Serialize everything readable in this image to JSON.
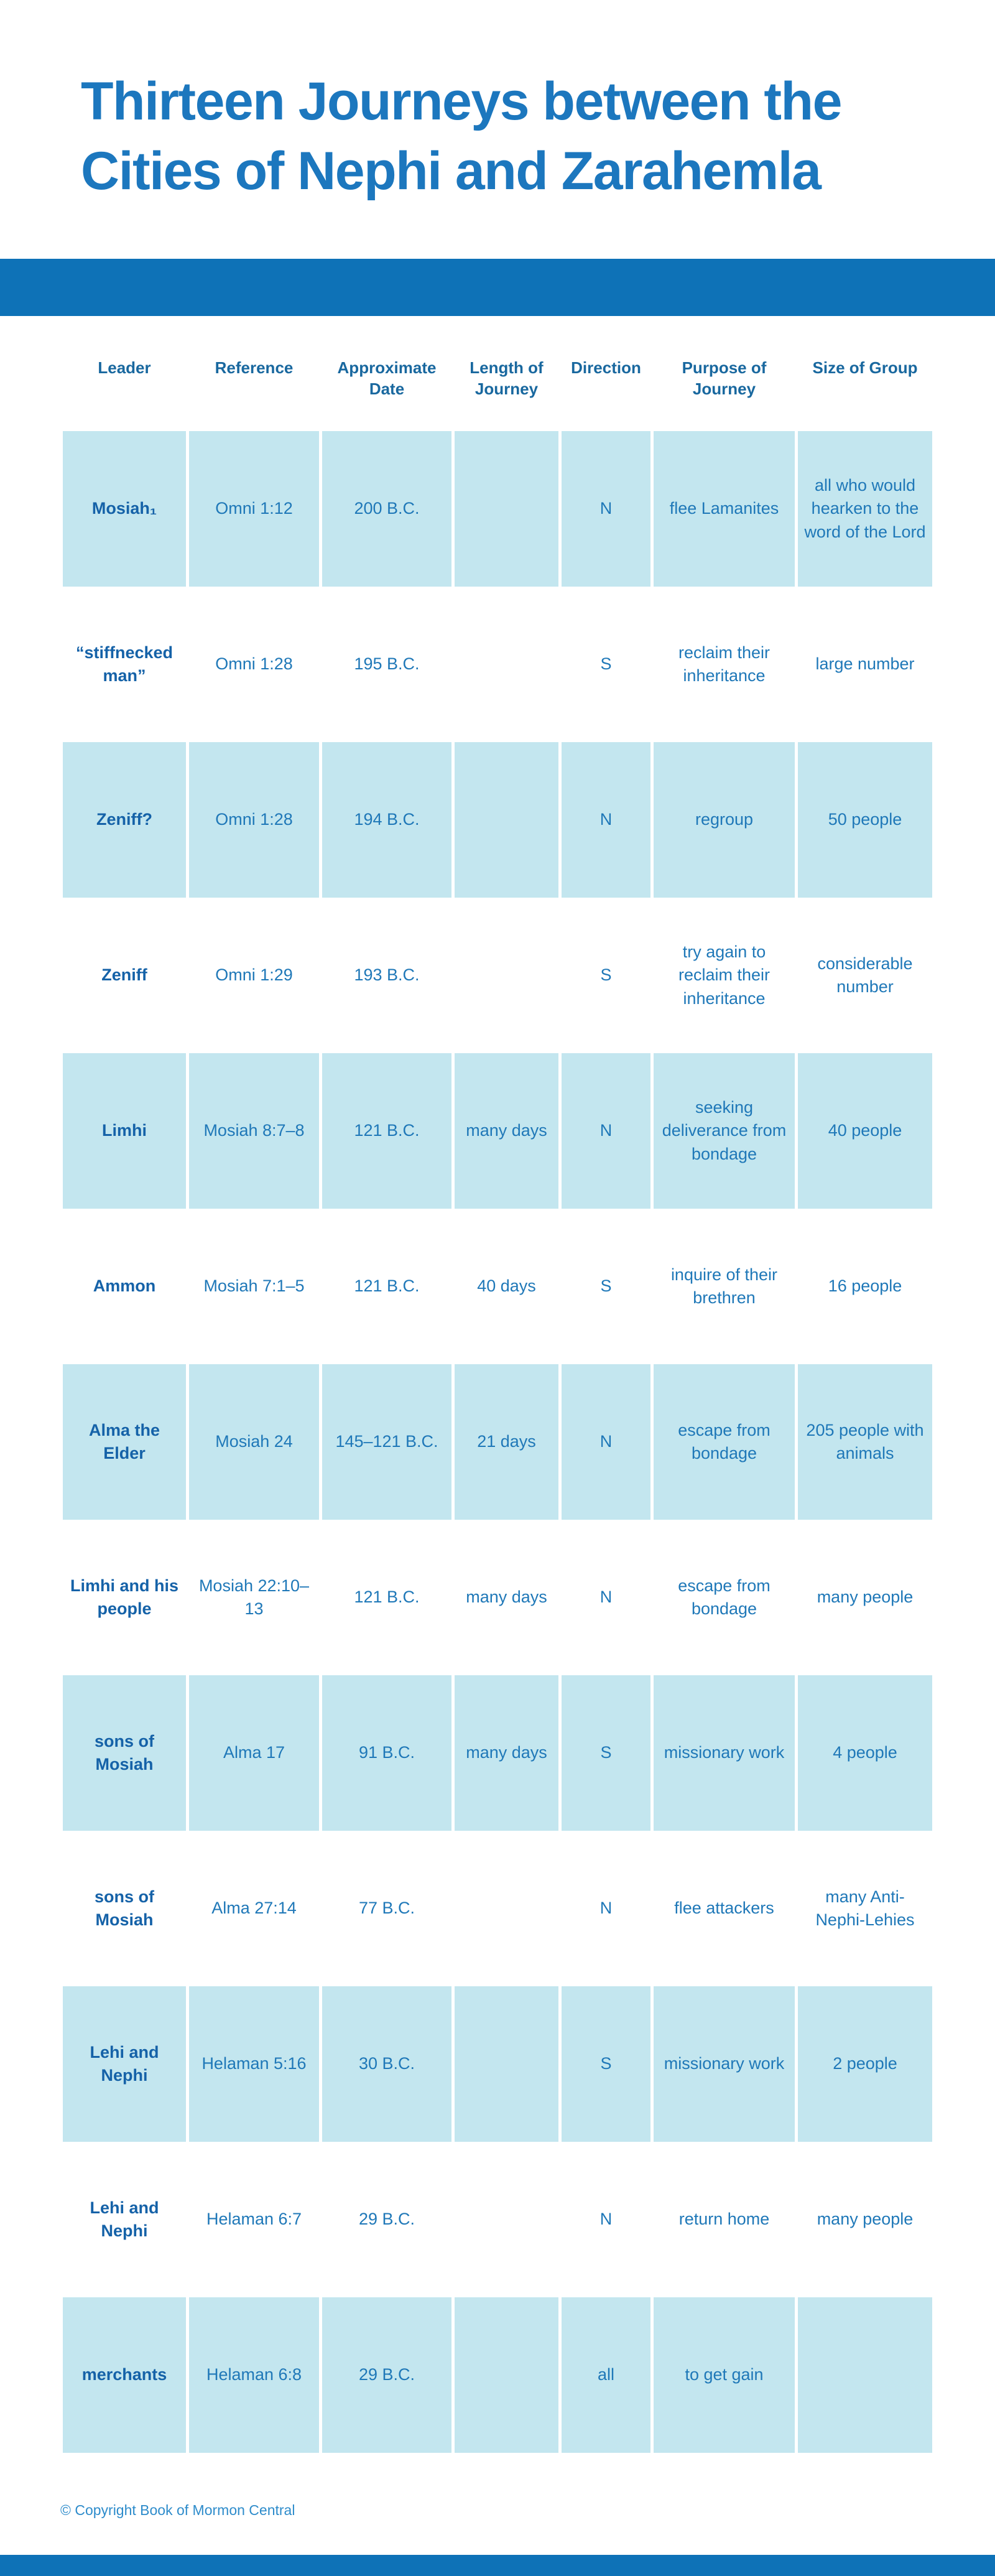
{
  "page": {
    "title_line1": "Thirteen Journeys between the",
    "title_line2": "Cities of Nephi and Zarahemla",
    "footer_copyright": "© Copyright Book of Mormon Central"
  },
  "colors": {
    "band_blue": "#0e72b7",
    "row_highlight_blue": "#c3e6ef",
    "title_text": "#1c77be",
    "header_text": "#19689f",
    "body_text": "#1f78b8",
    "leader_text": "#1562a8",
    "footer_text": "#2e8ccb",
    "background": "#ffffff"
  },
  "chart_data": {
    "type": "table",
    "title": "Thirteen Journeys between the Cities of Nephi and Zarahemla",
    "columns": [
      "Leader",
      "Reference",
      "Approximate Date",
      "Length of Journey",
      "Direction",
      "Purpose of Journey",
      "Size of Group"
    ],
    "rows": [
      [
        "Mosiah₁",
        "Omni 1:12",
        "200 B.C.",
        "",
        "N",
        "flee Lamanites",
        "all who would hearken to the word of the Lord"
      ],
      [
        "“stiffnecked man”",
        "Omni 1:28",
        "195 B.C.",
        "",
        "S",
        "reclaim their inheritance",
        "large number"
      ],
      [
        "Zeniff?",
        "Omni 1:28",
        "194 B.C.",
        "",
        "N",
        "regroup",
        "50 people"
      ],
      [
        "Zeniff",
        "Omni 1:29",
        "193 B.C.",
        "",
        "S",
        "try again to reclaim their inheritance",
        "considerable number"
      ],
      [
        "Limhi",
        "Mosiah 8:7–8",
        "121 B.C.",
        "many days",
        "N",
        "seeking deliverance from bondage",
        "40 people"
      ],
      [
        "Ammon",
        "Mosiah 7:1–5",
        "121 B.C.",
        "40 days",
        "S",
        "inquire of their brethren",
        "16 people"
      ],
      [
        "Alma the Elder",
        "Mosiah 24",
        "145–121 B.C.",
        "21 days",
        "N",
        "escape from bondage",
        "205 people with animals"
      ],
      [
        "Limhi and his people",
        "Mosiah 22:10–13",
        "121 B.C.",
        "many days",
        "N",
        "escape from bondage",
        "many people"
      ],
      [
        "sons of Mosiah",
        "Alma 17",
        "91 B.C.",
        "many days",
        "S",
        "missionary work",
        "4 people"
      ],
      [
        "sons of Mosiah",
        "Alma 27:14",
        "77 B.C.",
        "",
        "N",
        "flee attackers",
        "many Anti-Nephi-Lehies"
      ],
      [
        "Lehi and Nephi",
        "Helaman 5:16",
        "30 B.C.",
        "",
        "S",
        "missionary work",
        "2 people"
      ],
      [
        "Lehi and Nephi",
        "Helaman 6:7",
        "29 B.C.",
        "",
        "N",
        "return home",
        "many people"
      ],
      [
        "merchants",
        "Helaman 6:8",
        "29 B.C.",
        "",
        "all",
        "to get gain",
        ""
      ]
    ],
    "layout": {
      "striped_rows": "odd rows (1st, 3rd, ...) light blue, even rows white",
      "header_position": "top",
      "gridlines": "none, white gaps between cells"
    }
  }
}
